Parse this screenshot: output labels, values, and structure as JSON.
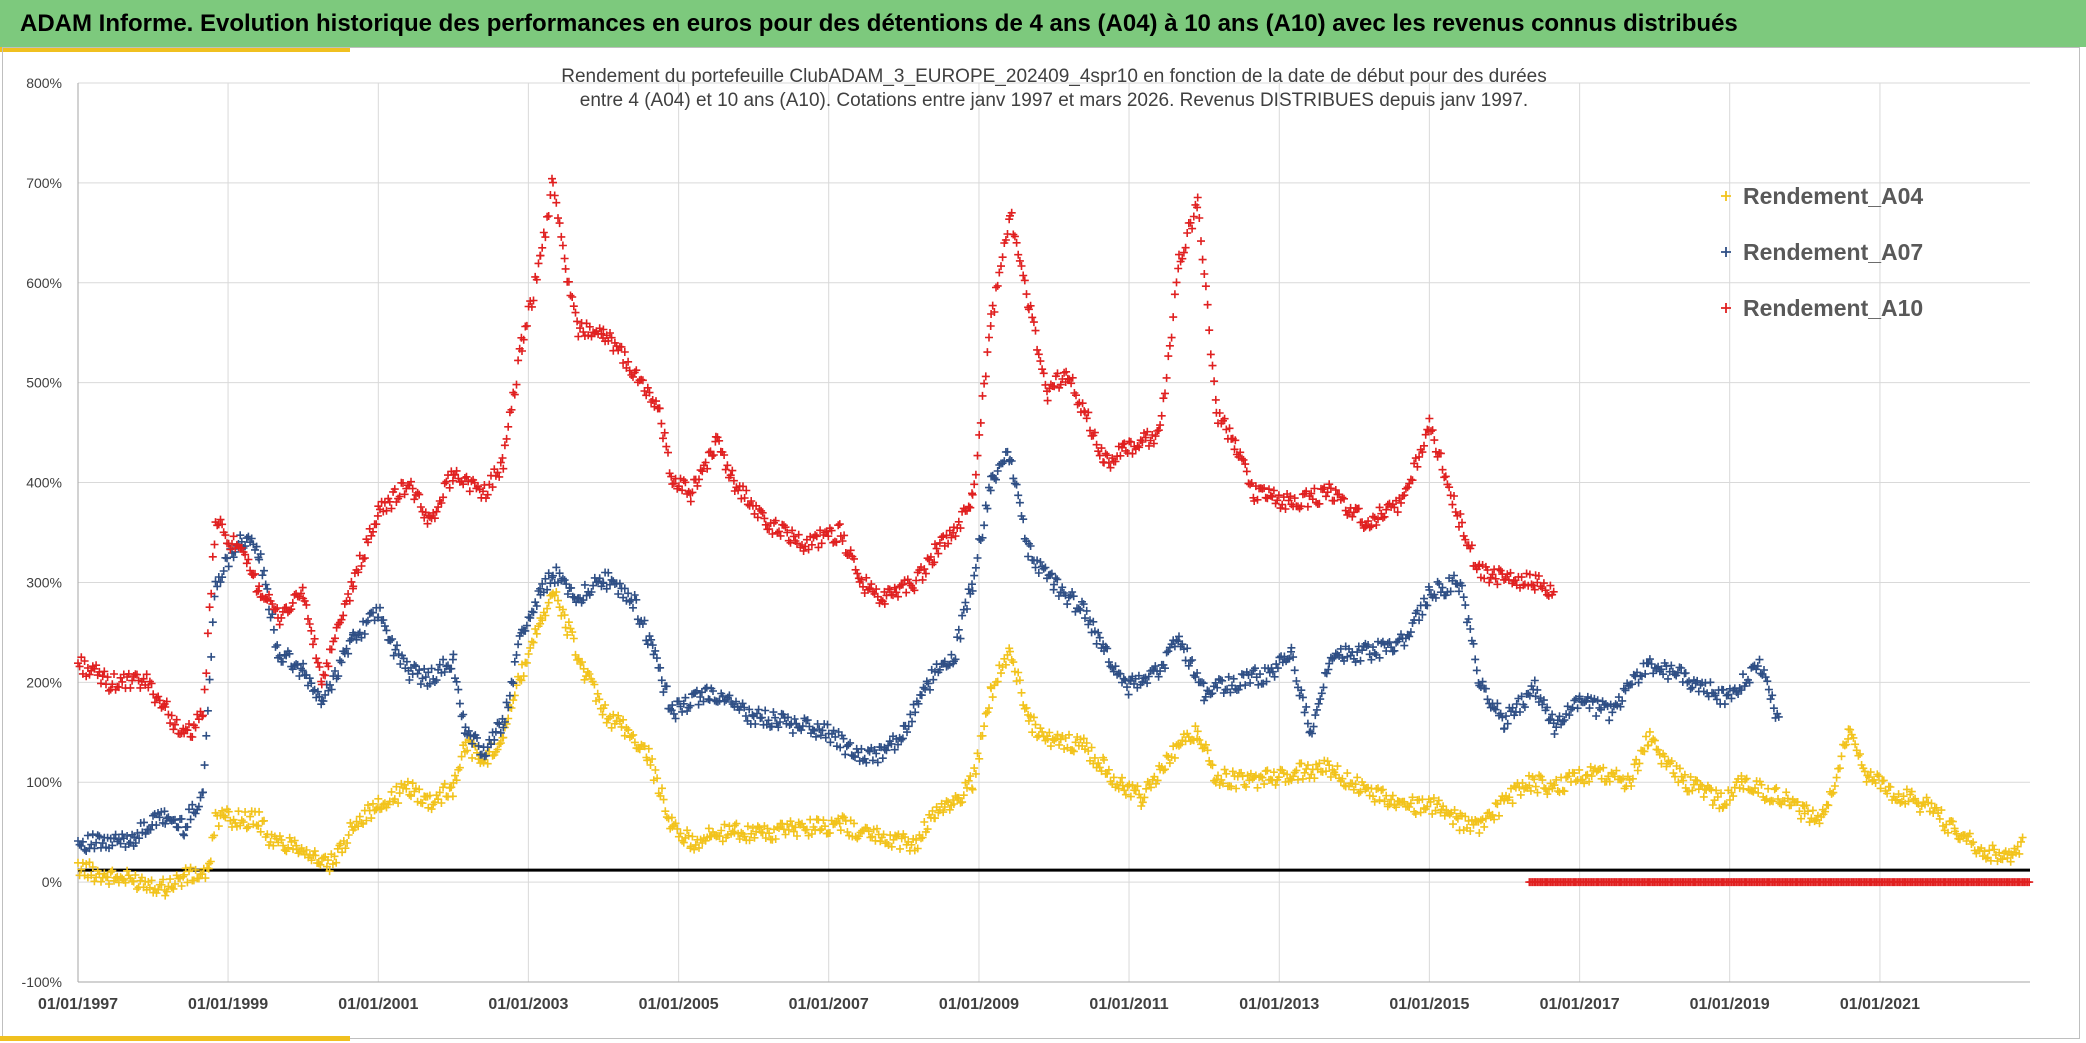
{
  "header": {
    "title": "ADAM Informe. Evolution historique des performances en euros pour des détentions de 4 ans (A04) à 10 ans (A10) avec les revenus connus distribués"
  },
  "colors": {
    "banner": "#7dc97d",
    "accent": "#f0c020",
    "A04": "#f2c31c",
    "A07": "#2f4f85",
    "A10": "#e02020",
    "zero_line": "#000000",
    "grid": "#d9d9d9"
  },
  "chart_data": {
    "type": "scatter",
    "marker": "plus",
    "title_lines": [
      "Rendement du portefeuille ClubADAM_3_EUROPE_202409_4spr10  en fonction de la date de début pour des durées",
      "entre 4 (A04) et 10 ans (A10). Cotations entre janv 1997 et mars 2026. Revenus DISTRIBUES depuis janv 1997."
    ],
    "x_axis": {
      "type": "date",
      "min": "1997-01-01",
      "max": "2023-01-01",
      "tick_labels": [
        "01/01/1997",
        "01/01/1999",
        "01/01/2001",
        "01/01/2003",
        "01/01/2005",
        "01/01/2007",
        "01/01/2009",
        "01/01/2011",
        "01/01/2013",
        "01/01/2015",
        "01/01/2017",
        "01/01/2019",
        "01/01/2021"
      ]
    },
    "y_axis": {
      "min": -100,
      "max": 800,
      "step": 100,
      "tick_labels": [
        "-100%",
        "0%",
        "100%",
        "200%",
        "300%",
        "400%",
        "500%",
        "600%",
        "700%",
        "800%"
      ]
    },
    "grid": true,
    "legend_position": "top-right",
    "reference_line": {
      "y": 12
    },
    "series": [
      {
        "name": "Rendement_A04",
        "color": "#f2c31c",
        "points": [
          [
            "1997-01-01",
            15
          ],
          [
            "1997-06-01",
            5
          ],
          [
            "1997-12-01",
            0
          ],
          [
            "1998-03-01",
            -5
          ],
          [
            "1998-06-01",
            5
          ],
          [
            "1998-10-01",
            10
          ],
          [
            "1998-11-01",
            65
          ],
          [
            "1999-06-01",
            62
          ],
          [
            "1999-08-01",
            40
          ],
          [
            "1999-12-01",
            38
          ],
          [
            "2000-03-01",
            25
          ],
          [
            "2000-05-01",
            15
          ],
          [
            "2000-07-01",
            30
          ],
          [
            "2000-09-01",
            60
          ],
          [
            "2001-01-01",
            75
          ],
          [
            "2001-06-01",
            95
          ],
          [
            "2001-09-01",
            80
          ],
          [
            "2002-01-01",
            95
          ],
          [
            "2002-03-01",
            140
          ],
          [
            "2002-06-01",
            120
          ],
          [
            "2002-09-01",
            150
          ],
          [
            "2002-12-01",
            210
          ],
          [
            "2003-03-01",
            265
          ],
          [
            "2003-05-01",
            290
          ],
          [
            "2003-07-01",
            260
          ],
          [
            "2003-10-01",
            210
          ],
          [
            "2004-01-01",
            170
          ],
          [
            "2004-05-01",
            150
          ],
          [
            "2004-08-01",
            130
          ],
          [
            "2004-12-01",
            55
          ],
          [
            "2005-03-01",
            40
          ],
          [
            "2005-06-01",
            45
          ],
          [
            "2005-10-01",
            52
          ],
          [
            "2006-03-01",
            48
          ],
          [
            "2006-09-01",
            55
          ],
          [
            "2007-03-01",
            58
          ],
          [
            "2007-09-01",
            45
          ],
          [
            "2008-03-01",
            38
          ],
          [
            "2008-06-01",
            70
          ],
          [
            "2008-09-01",
            80
          ],
          [
            "2008-12-01",
            100
          ],
          [
            "2009-03-01",
            190
          ],
          [
            "2009-06-01",
            235
          ],
          [
            "2009-09-01",
            160
          ],
          [
            "2009-12-01",
            145
          ],
          [
            "2010-06-01",
            135
          ],
          [
            "2010-09-01",
            115
          ],
          [
            "2010-12-01",
            95
          ],
          [
            "2011-03-01",
            85
          ],
          [
            "2011-06-01",
            110
          ],
          [
            "2011-09-01",
            135
          ],
          [
            "2011-12-01",
            150
          ],
          [
            "2012-03-01",
            105
          ],
          [
            "2012-09-01",
            100
          ],
          [
            "2013-03-01",
            110
          ],
          [
            "2013-09-01",
            115
          ],
          [
            "2014-03-01",
            90
          ],
          [
            "2014-09-01",
            78
          ],
          [
            "2015-03-01",
            75
          ],
          [
            "2015-06-01",
            60
          ],
          [
            "2015-09-01",
            55
          ],
          [
            "2016-01-01",
            80
          ],
          [
            "2016-05-01",
            100
          ],
          [
            "2016-09-01",
            95
          ],
          [
            "2017-03-01",
            110
          ],
          [
            "2017-09-01",
            100
          ],
          [
            "2017-12-01",
            145
          ],
          [
            "2018-03-01",
            120
          ],
          [
            "2018-06-01",
            100
          ],
          [
            "2018-09-01",
            90
          ],
          [
            "2018-12-01",
            80
          ],
          [
            "2019-03-01",
            100
          ],
          [
            "2019-09-01",
            85
          ],
          [
            "2020-01-01",
            70
          ],
          [
            "2020-04-01",
            65
          ],
          [
            "2020-08-01",
            150
          ],
          [
            "2020-11-01",
            105
          ],
          [
            "2021-03-01",
            90
          ],
          [
            "2021-09-01",
            75
          ],
          [
            "2022-01-01",
            50
          ],
          [
            "2022-06-01",
            30
          ],
          [
            "2022-10-01",
            25
          ],
          [
            "2022-12-01",
            40
          ]
        ]
      },
      {
        "name": "Rendement_A07",
        "color": "#2f4f85",
        "points": [
          [
            "1997-01-01",
            40
          ],
          [
            "1997-06-01",
            38
          ],
          [
            "1997-10-01",
            45
          ],
          [
            "1998-01-01",
            60
          ],
          [
            "1998-03-01",
            65
          ],
          [
            "1998-06-01",
            55
          ],
          [
            "1998-09-01",
            90
          ],
          [
            "1998-11-01",
            300
          ],
          [
            "1999-03-01",
            345
          ],
          [
            "1999-06-01",
            330
          ],
          [
            "1999-09-01",
            230
          ],
          [
            "2000-01-01",
            210
          ],
          [
            "2000-04-01",
            180
          ],
          [
            "2000-09-01",
            245
          ],
          [
            "2001-01-01",
            270
          ],
          [
            "2001-03-01",
            240
          ],
          [
            "2001-06-01",
            210
          ],
          [
            "2001-09-01",
            205
          ],
          [
            "2002-01-01",
            220
          ],
          [
            "2002-03-01",
            150
          ],
          [
            "2002-06-01",
            130
          ],
          [
            "2002-09-01",
            160
          ],
          [
            "2002-12-01",
            250
          ],
          [
            "2003-03-01",
            290
          ],
          [
            "2003-05-01",
            310
          ],
          [
            "2003-09-01",
            285
          ],
          [
            "2004-01-01",
            305
          ],
          [
            "2004-06-01",
            280
          ],
          [
            "2004-09-01",
            230
          ],
          [
            "2004-12-01",
            170
          ],
          [
            "2005-06-01",
            190
          ],
          [
            "2006-01-01",
            165
          ],
          [
            "2006-06-01",
            160
          ],
          [
            "2007-01-01",
            150
          ],
          [
            "2007-06-01",
            125
          ],
          [
            "2007-10-01",
            130
          ],
          [
            "2008-01-01",
            150
          ],
          [
            "2008-06-01",
            210
          ],
          [
            "2008-09-01",
            225
          ],
          [
            "2008-12-01",
            300
          ],
          [
            "2009-03-01",
            400
          ],
          [
            "2009-06-01",
            430
          ],
          [
            "2009-09-01",
            330
          ],
          [
            "2010-01-01",
            300
          ],
          [
            "2010-06-01",
            270
          ],
          [
            "2010-09-01",
            230
          ],
          [
            "2011-01-01",
            195
          ],
          [
            "2011-06-01",
            215
          ],
          [
            "2011-09-01",
            245
          ],
          [
            "2012-01-01",
            190
          ],
          [
            "2012-06-01",
            200
          ],
          [
            "2012-12-01",
            210
          ],
          [
            "2013-03-01",
            230
          ],
          [
            "2013-06-01",
            150
          ],
          [
            "2013-09-01",
            225
          ],
          [
            "2014-03-01",
            230
          ],
          [
            "2014-09-01",
            240
          ],
          [
            "2015-01-01",
            290
          ],
          [
            "2015-06-01",
            300
          ],
          [
            "2015-09-01",
            200
          ],
          [
            "2016-01-01",
            160
          ],
          [
            "2016-03-01",
            175
          ],
          [
            "2016-06-01",
            195
          ],
          [
            "2016-09-01",
            155
          ],
          [
            "2017-01-01",
            180
          ],
          [
            "2017-06-01",
            170
          ],
          [
            "2017-12-01",
            220
          ],
          [
            "2018-06-01",
            205
          ],
          [
            "2018-12-01",
            185
          ],
          [
            "2019-06-01",
            215
          ],
          [
            "2019-09-01",
            160
          ]
        ]
      },
      {
        "name": "Rendement_A10",
        "color": "#e02020",
        "points": [
          [
            "1997-01-01",
            220
          ],
          [
            "1997-06-01",
            200
          ],
          [
            "1997-12-01",
            200
          ],
          [
            "1998-03-01",
            175
          ],
          [
            "1998-06-01",
            145
          ],
          [
            "1998-09-01",
            165
          ],
          [
            "1998-11-01",
            360
          ],
          [
            "1999-03-01",
            330
          ],
          [
            "1999-06-01",
            295
          ],
          [
            "1999-09-01",
            265
          ],
          [
            "2000-01-01",
            290
          ],
          [
            "2000-04-01",
            200
          ],
          [
            "2000-09-01",
            300
          ],
          [
            "2001-01-01",
            370
          ],
          [
            "2001-06-01",
            400
          ],
          [
            "2001-09-01",
            360
          ],
          [
            "2002-01-01",
            410
          ],
          [
            "2002-06-01",
            390
          ],
          [
            "2002-09-01",
            420
          ],
          [
            "2002-12-01",
            540
          ],
          [
            "2003-03-01",
            620
          ],
          [
            "2003-05-01",
            705
          ],
          [
            "2003-07-01",
            610
          ],
          [
            "2003-09-01",
            555
          ],
          [
            "2004-01-01",
            550
          ],
          [
            "2004-06-01",
            510
          ],
          [
            "2004-10-01",
            470
          ],
          [
            "2004-12-01",
            400
          ],
          [
            "2005-03-01",
            390
          ],
          [
            "2005-07-01",
            440
          ],
          [
            "2005-10-01",
            400
          ],
          [
            "2006-03-01",
            360
          ],
          [
            "2006-09-01",
            340
          ],
          [
            "2007-03-01",
            350
          ],
          [
            "2007-06-01",
            300
          ],
          [
            "2007-10-01",
            285
          ],
          [
            "2008-03-01",
            300
          ],
          [
            "2008-06-01",
            330
          ],
          [
            "2008-09-01",
            350
          ],
          [
            "2008-12-01",
            385
          ],
          [
            "2009-03-01",
            560
          ],
          [
            "2009-06-01",
            670
          ],
          [
            "2009-09-01",
            580
          ],
          [
            "2009-12-01",
            490
          ],
          [
            "2010-03-01",
            510
          ],
          [
            "2010-06-01",
            470
          ],
          [
            "2010-09-01",
            420
          ],
          [
            "2010-12-01",
            430
          ],
          [
            "2011-06-01",
            450
          ],
          [
            "2011-09-01",
            620
          ],
          [
            "2011-12-01",
            680
          ],
          [
            "2012-03-01",
            470
          ],
          [
            "2012-06-01",
            440
          ],
          [
            "2012-09-01",
            390
          ],
          [
            "2013-03-01",
            380
          ],
          [
            "2013-09-01",
            390
          ],
          [
            "2014-03-01",
            360
          ],
          [
            "2014-09-01",
            380
          ],
          [
            "2015-01-01",
            460
          ],
          [
            "2015-06-01",
            360
          ],
          [
            "2015-09-01",
            310
          ],
          [
            "2016-03-01",
            300
          ],
          [
            "2016-06-01",
            300
          ],
          [
            "2016-09-01",
            290
          ]
        ]
      },
      {
        "name": "",
        "color": "#e02020",
        "points": [
          [
            "2016-05-01",
            0
          ],
          [
            "2023-01-01",
            0
          ]
        ]
      }
    ]
  },
  "legend": {
    "items": [
      {
        "label": "Rendement_A04",
        "color": "#f2c31c"
      },
      {
        "label": "Rendement_A07",
        "color": "#2f4f85"
      },
      {
        "label": "Rendement_A10",
        "color": "#e02020"
      }
    ]
  }
}
